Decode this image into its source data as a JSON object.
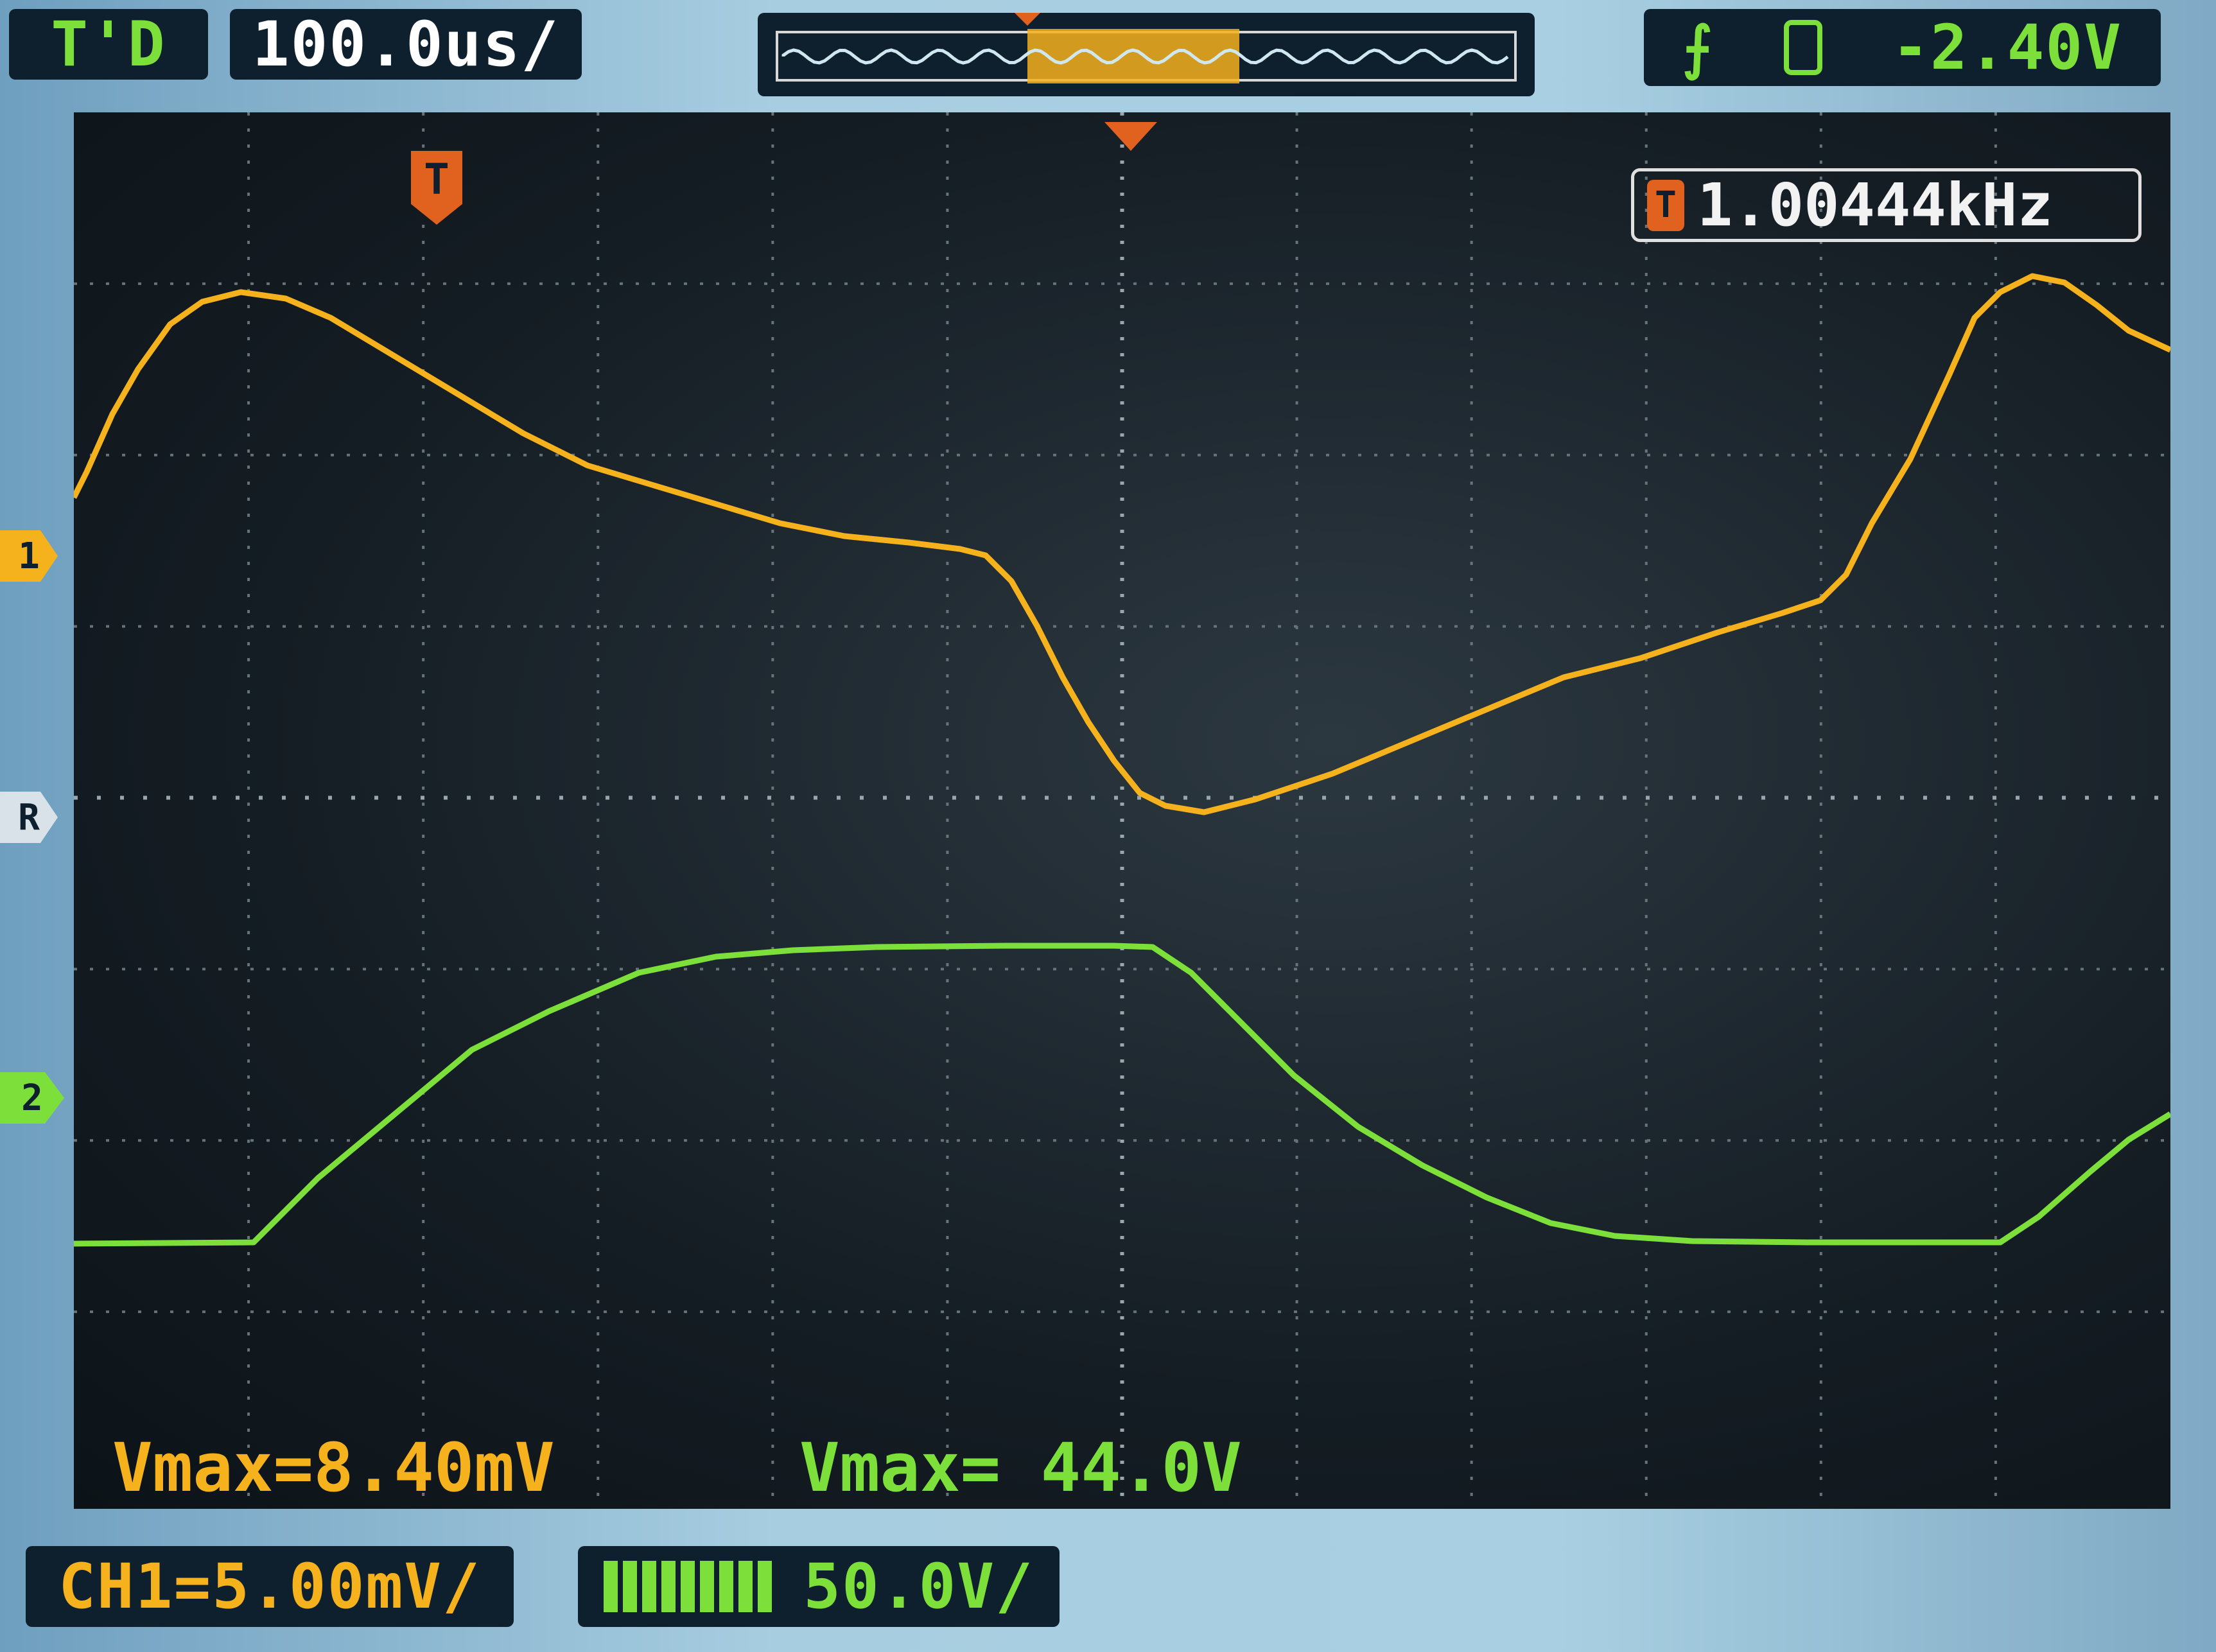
{
  "top_bar": {
    "trigger_status": "T'D",
    "timebase": "100.0us/",
    "trigger_source_icon": "trigger-source-icon",
    "trigger_level": "-2.40V"
  },
  "screen": {
    "trigger_marker": "T",
    "frequency_icon": "T",
    "frequency": "1.00444kHz",
    "left_markers": {
      "ch1": "1",
      "ref": "R",
      "ch2": "2"
    }
  },
  "measurements": {
    "ch1_vmax": "Vmax=8.40mV",
    "ch2_vmax": "Vmax= 44.0V"
  },
  "bottom_bar": {
    "ch1_scale": "CH1=5.00mV/",
    "ch2_scale": "50.0V/"
  },
  "colors": {
    "ch1": "#f5b21c",
    "ch2": "#7de03a",
    "trigger": "#e0621e",
    "panel": "#0e1f2e"
  },
  "traces": {
    "ch1": [
      [
        0,
        600
      ],
      [
        20,
        560
      ],
      [
        60,
        470
      ],
      [
        100,
        400
      ],
      [
        150,
        330
      ],
      [
        200,
        295
      ],
      [
        260,
        280
      ],
      [
        330,
        290
      ],
      [
        400,
        320
      ],
      [
        500,
        380
      ],
      [
        600,
        440
      ],
      [
        700,
        500
      ],
      [
        800,
        550
      ],
      [
        900,
        580
      ],
      [
        1000,
        610
      ],
      [
        1100,
        640
      ],
      [
        1200,
        660
      ],
      [
        1300,
        670
      ],
      [
        1380,
        680
      ],
      [
        1420,
        690
      ],
      [
        1460,
        730
      ],
      [
        1500,
        800
      ],
      [
        1540,
        880
      ],
      [
        1580,
        950
      ],
      [
        1620,
        1010
      ],
      [
        1660,
        1060
      ],
      [
        1700,
        1080
      ],
      [
        1760,
        1090
      ],
      [
        1840,
        1070
      ],
      [
        1960,
        1030
      ],
      [
        2080,
        980
      ],
      [
        2200,
        930
      ],
      [
        2320,
        880
      ],
      [
        2440,
        850
      ],
      [
        2560,
        810
      ],
      [
        2660,
        780
      ],
      [
        2720,
        760
      ],
      [
        2760,
        720
      ],
      [
        2800,
        640
      ],
      [
        2860,
        540
      ],
      [
        2920,
        410
      ],
      [
        2960,
        320
      ],
      [
        3000,
        280
      ],
      [
        3050,
        255
      ],
      [
        3100,
        265
      ],
      [
        3150,
        300
      ],
      [
        3200,
        340
      ],
      [
        3265,
        370
      ]
    ],
    "ch2": [
      [
        0,
        1762
      ],
      [
        280,
        1760
      ],
      [
        380,
        1660
      ],
      [
        500,
        1560
      ],
      [
        620,
        1460
      ],
      [
        740,
        1400
      ],
      [
        880,
        1340
      ],
      [
        1000,
        1315
      ],
      [
        1120,
        1305
      ],
      [
        1250,
        1300
      ],
      [
        1450,
        1298
      ],
      [
        1620,
        1298
      ],
      [
        1680,
        1300
      ],
      [
        1740,
        1340
      ],
      [
        1800,
        1400
      ],
      [
        1900,
        1500
      ],
      [
        2000,
        1580
      ],
      [
        2100,
        1640
      ],
      [
        2200,
        1690
      ],
      [
        2300,
        1730
      ],
      [
        2400,
        1750
      ],
      [
        2520,
        1758
      ],
      [
        2700,
        1760
      ],
      [
        2900,
        1760
      ],
      [
        3000,
        1760
      ],
      [
        3060,
        1720
      ],
      [
        3140,
        1650
      ],
      [
        3200,
        1600
      ],
      [
        3265,
        1560
      ]
    ]
  }
}
